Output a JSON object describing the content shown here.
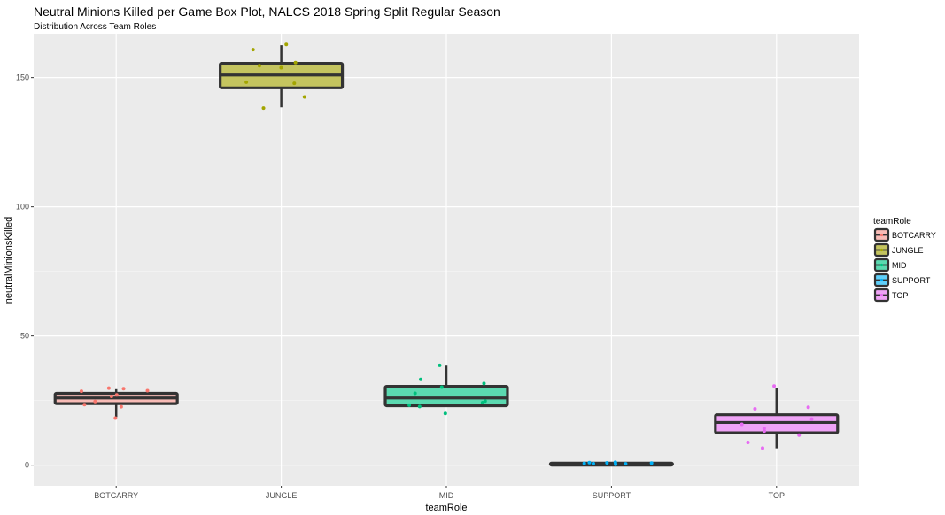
{
  "chart_data": {
    "type": "box",
    "title": "Neutral Minions Killed per Game Box Plot, NALCS 2018 Spring Split Regular Season",
    "subtitle": "Distribution Across Team Roles",
    "xlabel": "teamRole",
    "ylabel": "neutralMinionsKilled",
    "ylim": [
      -8,
      167
    ],
    "y_ticks": [
      0,
      50,
      100,
      150
    ],
    "categories": [
      "BOTCARRY",
      "JUNGLE",
      "MID",
      "SUPPORT",
      "TOP"
    ],
    "grid": true,
    "legend": {
      "title": "teamRole",
      "position": "right",
      "entries": [
        "BOTCARRY",
        "JUNGLE",
        "MID",
        "SUPPORT",
        "TOP"
      ]
    },
    "colors": [
      "#F8766D",
      "#A3A500",
      "#00BF7D",
      "#00B0F6",
      "#E76BF3"
    ],
    "fill_colors": [
      "#F8BBB6",
      "#C4C45F",
      "#5BD9B0",
      "#60D0FA",
      "#EFA3F6"
    ],
    "boxes": [
      {
        "category": "BOTCARRY",
        "min": 18.6,
        "q1": 23.8,
        "median": 26.0,
        "q3": 27.8,
        "max": 29.4
      },
      {
        "category": "JUNGLE",
        "min": 138.5,
        "q1": 146.0,
        "median": 151.0,
        "q3": 155.5,
        "max": 162.5
      },
      {
        "category": "MID",
        "min": 23.0,
        "q1": 23.0,
        "median": 26.0,
        "q3": 30.5,
        "max": 38.5
      },
      {
        "category": "SUPPORT",
        "min": 0.0,
        "q1": 0.0,
        "median": 0.3,
        "q3": 0.8,
        "max": 0.8
      },
      {
        "category": "TOP",
        "min": 6.5,
        "q1": 12.5,
        "median": 16.5,
        "q3": 19.5,
        "max": 30.0
      }
    ],
    "points": [
      {
        "category": "BOTCARRY",
        "values": [
          18.2,
          22.6,
          23.4,
          24.6,
          26.6,
          27.2,
          28.6,
          28.8,
          29.6,
          29.8
        ]
      },
      {
        "category": "JUNGLE",
        "values": [
          138.2,
          142.5,
          147.8,
          148.2,
          153.8,
          154.6,
          155.8,
          160.8,
          162.8
        ]
      },
      {
        "category": "MID",
        "values": [
          20.0,
          22.7,
          23.2,
          24.2,
          24.8,
          27.8,
          30.2,
          31.6,
          33.2,
          38.6
        ]
      },
      {
        "category": "SUPPORT",
        "values": [
          0.3,
          0.5,
          0.6,
          0.7,
          0.8,
          0.9,
          1.0,
          1.1
        ]
      },
      {
        "category": "TOP",
        "values": [
          6.6,
          8.8,
          11.6,
          13.2,
          14.2,
          15.8,
          17.8,
          21.8,
          22.4,
          30.6
        ]
      }
    ]
  }
}
